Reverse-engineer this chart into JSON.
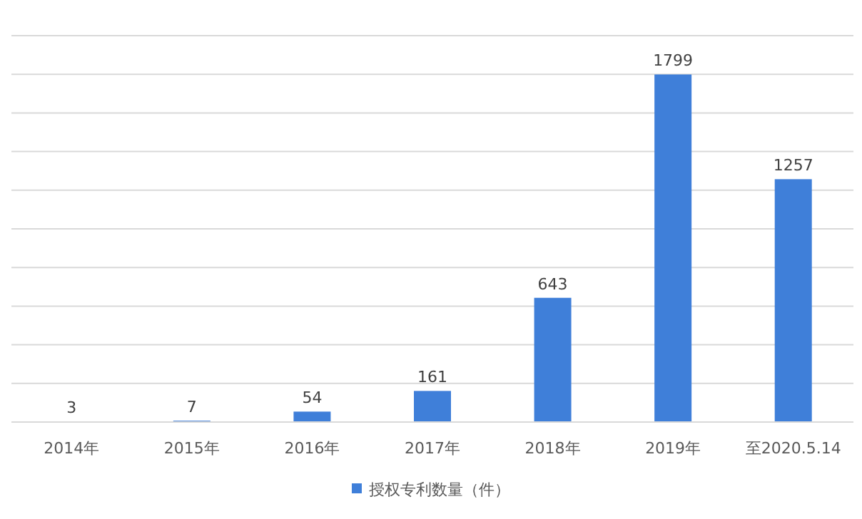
{
  "chart_data": {
    "type": "bar",
    "categories": [
      "2014年",
      "2015年",
      "2016年",
      "2017年",
      "2018年",
      "2019年",
      "至2020.5.14"
    ],
    "series": [
      {
        "name": "授权专利数量（件）",
        "color": "#3f7fd9",
        "values": [
          3,
          7,
          54,
          161,
          643,
          1799,
          1257
        ]
      }
    ],
    "ylim": [
      0,
      2000
    ],
    "yticks": [
      {
        "value": 0,
        "label": null
      },
      {
        "value": 200,
        "label": null
      },
      {
        "value": 400,
        "label": null
      },
      {
        "value": 600,
        "label": null
      },
      {
        "value": 800,
        "label": null
      },
      {
        "value": 1000,
        "label": null
      },
      {
        "value": 1200,
        "label": null
      },
      {
        "value": 1400,
        "label": null
      },
      {
        "value": 1600,
        "label": null
      },
      {
        "value": 1800,
        "label": null
      },
      {
        "value": 2000,
        "label": null
      }
    ],
    "tick_labels": "x",
    "grid": "y",
    "data_labels": true,
    "legend": "bottom"
  }
}
